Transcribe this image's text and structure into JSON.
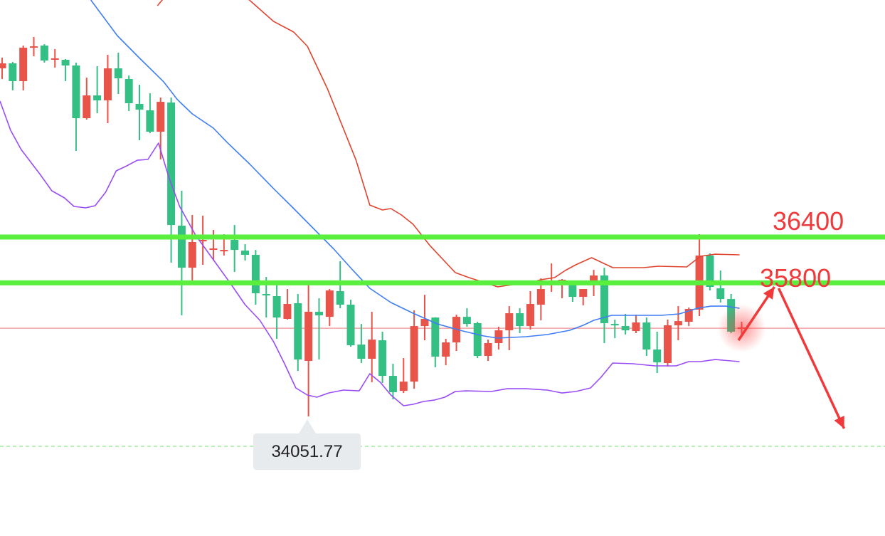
{
  "chart_data": {
    "type": "candlestick",
    "title": "",
    "xlabel": "",
    "ylabel": "",
    "xlim": [
      -0.2,
      83.57
    ],
    "ylim": [
      32487,
      39503
    ],
    "grid": false,
    "colors": {
      "up": "#e8534a",
      "down": "#34bf84",
      "upper_band": "#e0442f",
      "middle_band": "#3f7ef5",
      "lower_band": "#9a4cf5",
      "levels": "#5aef3d",
      "last_price": "#f2a3a3",
      "low_marker": "#8ee88a",
      "annotation": "#f0393a"
    },
    "candles_ohlc": [
      [
        38608,
        38748,
        38469,
        38674
      ],
      [
        38674,
        38692,
        38320,
        38441
      ],
      [
        38441,
        38907,
        38320,
        38879
      ],
      [
        38888,
        39018,
        38767,
        38897
      ],
      [
        38907,
        38925,
        38683,
        38711
      ],
      [
        38730,
        38860,
        38618,
        38739
      ],
      [
        38720,
        38730,
        38441,
        38646
      ],
      [
        38646,
        38683,
        37528,
        37956
      ],
      [
        37956,
        38487,
        37938,
        38254
      ],
      [
        38254,
        38636,
        38021,
        38189
      ],
      [
        38189,
        38786,
        37891,
        38608
      ],
      [
        38608,
        38813,
        38273,
        38478
      ],
      [
        38469,
        38515,
        38049,
        38152
      ],
      [
        38143,
        38394,
        37667,
        38068
      ],
      [
        38059,
        38282,
        37760,
        37779
      ],
      [
        37779,
        38226,
        37416,
        38170
      ],
      [
        38161,
        38226,
        36065,
        36558
      ],
      [
        36549,
        37006,
        35375,
        35999
      ],
      [
        35999,
        36689,
        35776,
        36335
      ],
      [
        36344,
        36680,
        36037,
        36363
      ],
      [
        36232,
        36493,
        36093,
        36251
      ],
      [
        36214,
        36437,
        36158,
        36232
      ],
      [
        36363,
        36558,
        35944,
        36232
      ],
      [
        36223,
        36307,
        36093,
        36167
      ],
      [
        36167,
        36232,
        35515,
        35664
      ],
      [
        35655,
        35878,
        35347,
        35636
      ],
      [
        35627,
        35794,
        35068,
        35347
      ],
      [
        35329,
        35720,
        35320,
        35524
      ],
      [
        35534,
        35655,
        34648,
        34797
      ],
      [
        34779,
        35822,
        34051.77,
        35422
      ],
      [
        35422,
        35599,
        34797,
        35375
      ],
      [
        35356,
        35720,
        35235,
        35701
      ],
      [
        35692,
        36083,
        35468,
        35515
      ],
      [
        35515,
        35580,
        34965,
        34984
      ],
      [
        34993,
        35263,
        34751,
        34807
      ],
      [
        34807,
        35422,
        34499,
        35058
      ],
      [
        35049,
        35161,
        34490,
        34583
      ],
      [
        34583,
        34742,
        34276,
        34369
      ],
      [
        34387,
        34816,
        34359,
        34508
      ],
      [
        34508,
        35440,
        34415,
        35235
      ],
      [
        35235,
        35645,
        35049,
        35329
      ],
      [
        35347,
        35350,
        34695,
        34835
      ],
      [
        34835,
        35068,
        34723,
        35021
      ],
      [
        35021,
        35384,
        34909,
        35356
      ],
      [
        35356,
        35468,
        35226,
        35263
      ],
      [
        35273,
        35291,
        34816,
        34844
      ],
      [
        34844,
        35058,
        34779,
        35012
      ],
      [
        35012,
        35226,
        34928,
        35179
      ],
      [
        35179,
        35496,
        34919,
        35403
      ],
      [
        35403,
        35468,
        35142,
        35235
      ],
      [
        35235,
        35692,
        35189,
        35524
      ],
      [
        35515,
        35860,
        35310,
        35720
      ],
      [
        35776,
        36055,
        35683,
        35804
      ],
      [
        35832,
        35850,
        35599,
        35841
      ],
      [
        35832,
        35832,
        35552,
        35617
      ],
      [
        35617,
        35720,
        35506,
        35720
      ],
      [
        35776,
        35971,
        35627,
        35897
      ],
      [
        35897,
        35999,
        35012,
        35273
      ],
      [
        35263,
        35319,
        35077,
        35245
      ],
      [
        35235,
        35394,
        35124,
        35179
      ],
      [
        35170,
        35384,
        35142,
        35282
      ],
      [
        35282,
        35347,
        34844,
        34928
      ],
      [
        34928,
        35161,
        34620,
        34760
      ],
      [
        34751,
        35319,
        34704,
        35245
      ],
      [
        35245,
        35496,
        35049,
        35300
      ],
      [
        35291,
        35478,
        35235,
        35459
      ],
      [
        35450,
        36437,
        35366,
        36158
      ],
      [
        36158,
        36186,
        35701,
        35748
      ],
      [
        35729,
        35962,
        35543,
        35589
      ],
      [
        35589,
        35655,
        35142,
        35161
      ],
      [
        35198,
        35291,
        35124,
        35217
      ]
    ],
    "upper_band": [
      [
        14.7,
        39428
      ],
      [
        16.0,
        39643
      ],
      [
        22.0,
        39643
      ],
      [
        23.4,
        39503
      ],
      [
        25.7,
        39223
      ],
      [
        27.6,
        39084
      ],
      [
        28.9,
        38897
      ],
      [
        30.8,
        38338
      ],
      [
        33.5,
        37406
      ],
      [
        34.8,
        36819
      ],
      [
        36.0,
        36754
      ],
      [
        36.8,
        36773
      ],
      [
        37.8,
        36689
      ],
      [
        38.9,
        36568
      ],
      [
        40.5,
        36288
      ],
      [
        42.9,
        35934
      ],
      [
        44.2,
        35869
      ],
      [
        46.3,
        35776
      ],
      [
        46.9,
        35748
      ],
      [
        48.3,
        35776
      ],
      [
        50.0,
        35804
      ],
      [
        51.0,
        35841
      ],
      [
        52.3,
        35869
      ],
      [
        53.3,
        35962
      ],
      [
        54.3,
        36037
      ],
      [
        55.8,
        36130
      ],
      [
        57.8,
        36000
      ],
      [
        60.7,
        36000
      ],
      [
        62.1,
        36018
      ],
      [
        64.8,
        36009
      ],
      [
        66.1,
        36149
      ],
      [
        67.5,
        36176
      ],
      [
        69.8,
        36167
      ]
    ],
    "middle_band": [
      [
        8.4,
        39503
      ],
      [
        10.9,
        39037
      ],
      [
        12.9,
        38758
      ],
      [
        15.3,
        38431
      ],
      [
        16.6,
        38198
      ],
      [
        18.0,
        38012
      ],
      [
        20.0,
        37826
      ],
      [
        21.3,
        37639
      ],
      [
        23.4,
        37360
      ],
      [
        25.7,
        37034
      ],
      [
        27.4,
        36801
      ],
      [
        29.4,
        36521
      ],
      [
        31.4,
        36242
      ],
      [
        33.1,
        35981
      ],
      [
        34.8,
        35729
      ],
      [
        36.8,
        35543
      ],
      [
        38.9,
        35403
      ],
      [
        41.2,
        35263
      ],
      [
        43.6,
        35170
      ],
      [
        45.6,
        35105
      ],
      [
        46.9,
        35077
      ],
      [
        49.6,
        35096
      ],
      [
        51.6,
        35124
      ],
      [
        53.7,
        35179
      ],
      [
        55.0,
        35245
      ],
      [
        56.0,
        35310
      ],
      [
        57.7,
        35375
      ],
      [
        60.4,
        35375
      ],
      [
        62.4,
        35375
      ],
      [
        64.1,
        35394
      ],
      [
        65.8,
        35468
      ],
      [
        67.1,
        35496
      ],
      [
        68.5,
        35496
      ],
      [
        69.8,
        35468
      ]
    ],
    "lower_band": [
      [
        -0.2,
        38180
      ],
      [
        0.8,
        37798
      ],
      [
        1.8,
        37546
      ],
      [
        3.6,
        37220
      ],
      [
        4.7,
        37006
      ],
      [
        5.9,
        36913
      ],
      [
        6.8,
        36801
      ],
      [
        7.9,
        36782
      ],
      [
        8.8,
        36810
      ],
      [
        9.8,
        36987
      ],
      [
        10.8,
        37267
      ],
      [
        11.8,
        37332
      ],
      [
        12.8,
        37406
      ],
      [
        13.8,
        37416
      ],
      [
        14.8,
        37630
      ],
      [
        15.8,
        37174
      ],
      [
        16.8,
        36801
      ],
      [
        18.3,
        36428
      ],
      [
        20.0,
        36102
      ],
      [
        21.7,
        35776
      ],
      [
        23.0,
        35515
      ],
      [
        24.4,
        35310
      ],
      [
        25.7,
        35030
      ],
      [
        26.7,
        34751
      ],
      [
        27.8,
        34425
      ],
      [
        28.9,
        34332
      ],
      [
        29.8,
        34304
      ],
      [
        30.9,
        34359
      ],
      [
        32.3,
        34397
      ],
      [
        33.8,
        34387
      ],
      [
        34.8,
        34611
      ],
      [
        35.8,
        34499
      ],
      [
        36.8,
        34332
      ],
      [
        38.0,
        34192
      ],
      [
        38.9,
        34211
      ],
      [
        39.9,
        34248
      ],
      [
        40.9,
        34266
      ],
      [
        41.9,
        34304
      ],
      [
        42.9,
        34378
      ],
      [
        43.9,
        34387
      ],
      [
        46.3,
        34378
      ],
      [
        47.8,
        34415
      ],
      [
        49.6,
        34415
      ],
      [
        51.6,
        34397
      ],
      [
        53.0,
        34359
      ],
      [
        54.3,
        34378
      ],
      [
        55.7,
        34425
      ],
      [
        56.7,
        34567
      ],
      [
        57.8,
        34751
      ],
      [
        59.7,
        34742
      ],
      [
        61.8,
        34714
      ],
      [
        63.8,
        34714
      ],
      [
        65.0,
        34770
      ],
      [
        66.1,
        34770
      ],
      [
        67.5,
        34797
      ],
      [
        69.8,
        34770
      ]
    ],
    "levels": [
      {
        "label": "36400",
        "value": 36400
      },
      {
        "label": "35800",
        "value": 35800
      }
    ],
    "last_price": 35207,
    "low_marker": {
      "value": 33661,
      "label": "34051.77",
      "index": 29
    },
    "forecast_arrow": [
      [
        69.7,
        35049
      ],
      [
        73.1,
        35748
      ],
      [
        79.7,
        33894
      ]
    ]
  }
}
